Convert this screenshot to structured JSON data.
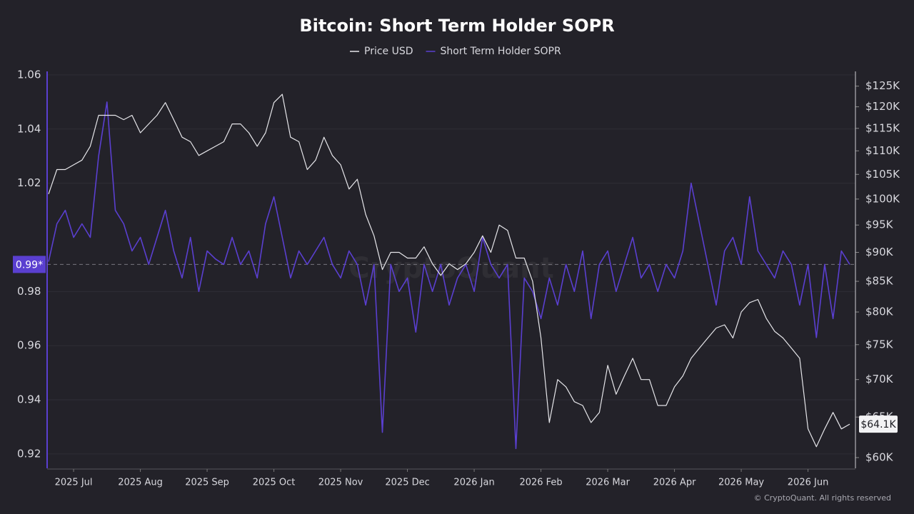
{
  "chart_data": {
    "type": "line",
    "title": "Bitcoin: Short Term Holder SOPR",
    "watermark": "CryptoQuant",
    "credit": "© CryptoQuant. All rights reserved",
    "categories": [
      null,
      null,
      null,
      "2025 Jul",
      null,
      null,
      null,
      null,
      null,
      null,
      null,
      "2025 Aug",
      null,
      null,
      null,
      null,
      null,
      null,
      null,
      "2025 Sep",
      null,
      null,
      null,
      null,
      null,
      null,
      null,
      "2025 Oct",
      null,
      null,
      null,
      null,
      null,
      null,
      null,
      "2025 Nov",
      null,
      null,
      null,
      null,
      null,
      null,
      null,
      "2025 Dec",
      null,
      null,
      null,
      null,
      null,
      null,
      null,
      "2026 Jan",
      null,
      null,
      null,
      null,
      null,
      null,
      null,
      "2026 Feb",
      null,
      null,
      null,
      null,
      null,
      null,
      null,
      "2026 Mar",
      null,
      null,
      null,
      null,
      null,
      null,
      null,
      "2026 Apr",
      null,
      null,
      null,
      null,
      null,
      null,
      null,
      "2026 May",
      null,
      null,
      null,
      null,
      null,
      null,
      null,
      "2026 Jun",
      null,
      null,
      null,
      null,
      null
    ],
    "series": [
      {
        "name": "Price USD",
        "color": "#e6e6ea",
        "axis": "y2",
        "values": [
          101000,
          106000,
          106000,
          107000,
          108000,
          111000,
          118000,
          118000,
          118000,
          117000,
          118000,
          114000,
          116000,
          118000,
          121000,
          117000,
          113000,
          112000,
          109000,
          110000,
          111000,
          112000,
          116000,
          116000,
          114000,
          111000,
          114000,
          121000,
          123000,
          113000,
          112000,
          106000,
          108000,
          113000,
          109000,
          107000,
          102000,
          104000,
          97000,
          93000,
          87000,
          90000,
          90000,
          89000,
          89000,
          91000,
          88000,
          86000,
          88000,
          87000,
          88000,
          90000,
          93000,
          90000,
          95000,
          94000,
          89000,
          89000,
          85000,
          76000,
          64300,
          70000,
          69000,
          67000,
          66500,
          64300,
          65600,
          72000,
          68000,
          70500,
          73000,
          70000,
          70000,
          66500,
          66500,
          69000,
          70500,
          73000,
          74500,
          76000,
          77500,
          78000,
          76000,
          80000,
          81500,
          82000,
          79000,
          77000,
          76000,
          74500,
          73000,
          63500,
          61300,
          63500,
          65600,
          63500,
          64100
        ]
      },
      {
        "name": "Short Term Holder SOPR",
        "color": "#5a3fd0",
        "axis": "y",
        "values": [
          0.991,
          1.005,
          1.01,
          1.0,
          1.005,
          1.0,
          1.03,
          1.05,
          1.01,
          1.005,
          0.995,
          1.0,
          0.99,
          1.0,
          1.01,
          0.995,
          0.985,
          1.0,
          0.98,
          0.995,
          0.992,
          0.99,
          1.0,
          0.99,
          0.995,
          0.985,
          1.005,
          1.015,
          1.0,
          0.985,
          0.995,
          0.99,
          0.995,
          1.0,
          0.99,
          0.985,
          0.995,
          0.99,
          0.975,
          0.99,
          0.928,
          0.99,
          0.98,
          0.985,
          0.965,
          0.99,
          0.98,
          0.99,
          0.975,
          0.985,
          0.99,
          0.98,
          1.0,
          0.99,
          0.985,
          0.99,
          0.922,
          0.985,
          0.98,
          0.97,
          0.985,
          0.975,
          0.99,
          0.98,
          0.995,
          0.97,
          0.99,
          0.995,
          0.98,
          0.99,
          1.0,
          0.985,
          0.99,
          0.98,
          0.99,
          0.985,
          0.995,
          1.02,
          1.005,
          0.99,
          0.975,
          0.995,
          1.0,
          0.99,
          1.015,
          0.995,
          0.99,
          0.985,
          0.995,
          0.99,
          0.975,
          0.99,
          0.963,
          0.99,
          0.97,
          0.995,
          0.99
        ]
      }
    ],
    "ylim": [
      0.9147,
      1.0613
    ],
    "yticks": [
      0.92,
      0.94,
      0.96,
      0.98,
      1.02,
      1.04,
      1.06
    ],
    "y2lim": [
      58740,
      128700
    ],
    "y2scale": "log",
    "y2ticks": [
      {
        "value": 60000,
        "label": "$60K"
      },
      {
        "value": 65000,
        "label": "$65K"
      },
      {
        "value": 70000,
        "label": "$70K"
      },
      {
        "value": 75000,
        "label": "$75K"
      },
      {
        "value": 80000,
        "label": "$80K"
      },
      {
        "value": 85000,
        "label": "$85K"
      },
      {
        "value": 90000,
        "label": "$90K"
      },
      {
        "value": 95000,
        "label": "$95K"
      },
      {
        "value": 100000,
        "label": "$100K"
      },
      {
        "value": 105000,
        "label": "$105K"
      },
      {
        "value": 110000,
        "label": "$110K"
      },
      {
        "value": 115000,
        "label": "$115K"
      },
      {
        "value": 120000,
        "label": "$120K"
      },
      {
        "value": 125000,
        "label": "$125K"
      }
    ],
    "grid": true,
    "annotations": [
      {
        "axis": "y",
        "value": 0.99,
        "label": "0.99*"
      },
      {
        "axis": "y2",
        "value": 64100,
        "label": "$64.1K"
      }
    ]
  }
}
